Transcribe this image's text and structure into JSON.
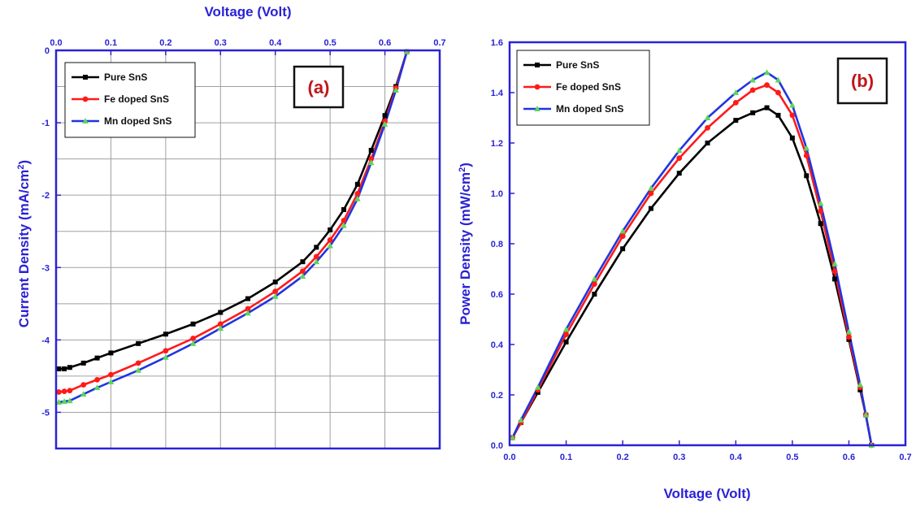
{
  "colors": {
    "axis": "#2a22d6",
    "pure": "#000000",
    "fe": "#ff1a1a",
    "mn": "#1f35e0",
    "mn_marker": "#5cd65c",
    "grid": "#a0a0a0",
    "label": "#c0171b"
  },
  "chart_data": [
    {
      "type": "line",
      "panel_label": "(a)",
      "xlabel": "Voltage (Volt)",
      "ylabel": "Current Density (mA/cm2)",
      "xlim": [
        0,
        0.7
      ],
      "ylim": [
        -5.5,
        0
      ],
      "x_axis_position": "top",
      "xticks": [
        "0.0",
        "0.1",
        "0.2",
        "0.3",
        "0.4",
        "0.5",
        "0.6",
        "0.7"
      ],
      "yticks": [
        "0",
        "-1",
        "-2",
        "-3",
        "-4",
        "-5"
      ],
      "grid": "horizontal and vertical",
      "legend_position": "top-left",
      "series": [
        {
          "name": "Pure SnS",
          "marker": "square",
          "x": [
            0.005,
            0.015,
            0.025,
            0.05,
            0.075,
            0.1,
            0.15,
            0.2,
            0.25,
            0.3,
            0.35,
            0.4,
            0.45,
            0.475,
            0.5,
            0.525,
            0.55,
            0.575,
            0.6,
            0.62,
            0.64
          ],
          "y": [
            -4.4,
            -4.4,
            -4.38,
            -4.32,
            -4.25,
            -4.18,
            -4.05,
            -3.92,
            -3.78,
            -3.62,
            -3.43,
            -3.2,
            -2.92,
            -2.72,
            -2.48,
            -2.2,
            -1.85,
            -1.38,
            -0.9,
            -0.5,
            -0.02
          ]
        },
        {
          "name": "Fe doped SnS",
          "marker": "circle",
          "x": [
            0.005,
            0.015,
            0.025,
            0.05,
            0.075,
            0.1,
            0.15,
            0.2,
            0.25,
            0.3,
            0.35,
            0.4,
            0.45,
            0.475,
            0.5,
            0.525,
            0.55,
            0.575,
            0.6,
            0.62,
            0.64
          ],
          "y": [
            -4.72,
            -4.71,
            -4.7,
            -4.62,
            -4.55,
            -4.48,
            -4.32,
            -4.15,
            -3.98,
            -3.78,
            -3.57,
            -3.33,
            -3.05,
            -2.85,
            -2.62,
            -2.35,
            -1.98,
            -1.5,
            -0.98,
            -0.52,
            -0.02
          ]
        },
        {
          "name": "Mn doped SnS",
          "marker": "triangle",
          "x": [
            0.005,
            0.015,
            0.025,
            0.05,
            0.075,
            0.1,
            0.15,
            0.2,
            0.25,
            0.3,
            0.35,
            0.4,
            0.45,
            0.475,
            0.5,
            0.525,
            0.55,
            0.575,
            0.6,
            0.62,
            0.64
          ],
          "y": [
            -4.86,
            -4.85,
            -4.84,
            -4.75,
            -4.66,
            -4.58,
            -4.42,
            -4.24,
            -4.05,
            -3.84,
            -3.63,
            -3.4,
            -3.12,
            -2.92,
            -2.7,
            -2.42,
            -2.05,
            -1.55,
            -1.02,
            -0.55,
            -0.02
          ]
        }
      ]
    },
    {
      "type": "line",
      "panel_label": "(b)",
      "xlabel": "Voltage (Volt)",
      "ylabel": "Power Density (mW/cm2)",
      "xlim": [
        0,
        0.7
      ],
      "ylim": [
        0,
        1.6
      ],
      "x_axis_position": "bottom",
      "xticks": [
        "0.0",
        "0.1",
        "0.2",
        "0.3",
        "0.4",
        "0.5",
        "0.6",
        "0.7"
      ],
      "yticks": [
        "0.0",
        "0.2",
        "0.4",
        "0.6",
        "0.8",
        "1.0",
        "1.2",
        "1.4",
        "1.6"
      ],
      "grid": "none",
      "legend_position": "top-left",
      "series": [
        {
          "name": "Pure SnS",
          "marker": "square",
          "x": [
            0.005,
            0.02,
            0.05,
            0.1,
            0.15,
            0.2,
            0.25,
            0.3,
            0.35,
            0.4,
            0.43,
            0.455,
            0.475,
            0.5,
            0.525,
            0.55,
            0.575,
            0.6,
            0.62,
            0.63,
            0.64
          ],
          "y": [
            0.03,
            0.09,
            0.21,
            0.41,
            0.6,
            0.78,
            0.94,
            1.08,
            1.2,
            1.29,
            1.32,
            1.34,
            1.31,
            1.22,
            1.07,
            0.88,
            0.66,
            0.42,
            0.22,
            0.12,
            0.0
          ]
        },
        {
          "name": "Fe doped SnS",
          "marker": "circle",
          "x": [
            0.005,
            0.02,
            0.05,
            0.1,
            0.15,
            0.2,
            0.25,
            0.3,
            0.35,
            0.4,
            0.43,
            0.455,
            0.475,
            0.5,
            0.525,
            0.55,
            0.575,
            0.6,
            0.62,
            0.63,
            0.64
          ],
          "y": [
            0.03,
            0.09,
            0.22,
            0.44,
            0.64,
            0.83,
            1.0,
            1.14,
            1.26,
            1.36,
            1.41,
            1.43,
            1.4,
            1.31,
            1.15,
            0.93,
            0.69,
            0.43,
            0.23,
            0.12,
            0.0
          ]
        },
        {
          "name": "Mn doped SnS",
          "marker": "triangle",
          "x": [
            0.005,
            0.02,
            0.05,
            0.1,
            0.15,
            0.2,
            0.25,
            0.3,
            0.35,
            0.4,
            0.43,
            0.455,
            0.475,
            0.5,
            0.525,
            0.55,
            0.575,
            0.6,
            0.62,
            0.63,
            0.64
          ],
          "y": [
            0.03,
            0.1,
            0.23,
            0.46,
            0.66,
            0.85,
            1.02,
            1.17,
            1.3,
            1.4,
            1.45,
            1.48,
            1.45,
            1.35,
            1.18,
            0.96,
            0.72,
            0.45,
            0.24,
            0.12,
            0.0
          ]
        }
      ]
    }
  ]
}
